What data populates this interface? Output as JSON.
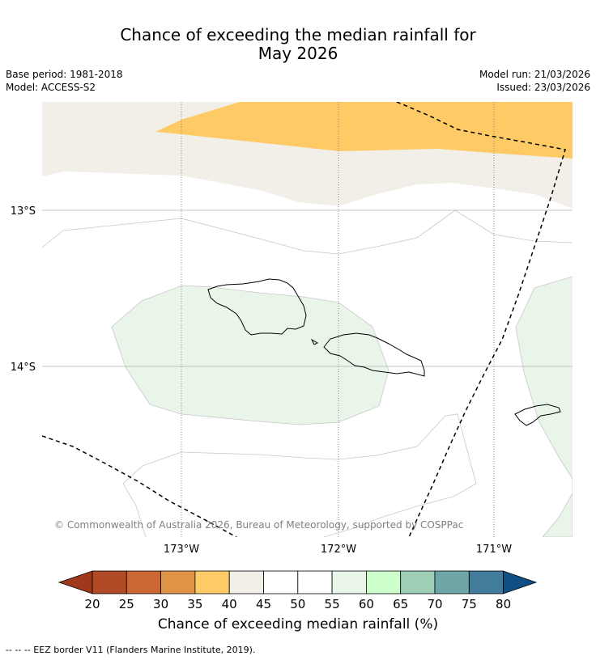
{
  "header": {
    "title_line1": "Chance of exceeding the median rainfall for",
    "title_line2": "May 2026",
    "base_period": "Base period: 1981-2018",
    "model": "Model: ACCESS-S2",
    "model_run": "Model run: 21/03/2026",
    "issued": "Issued: 23/03/2026"
  },
  "map": {
    "lat_labels": [
      "13°S",
      "14°S"
    ],
    "lon_labels": [
      "173°W",
      "172°W",
      "171°W"
    ],
    "copyright": "© Commonwealth of Australia 2026, Bureau of Meteorology, supported by COSPPac",
    "colors": {
      "band_40_45": "#f2eee8",
      "band_35_40": "#fdca66",
      "band_55_60": "#eaf5ea",
      "eez": "#000000"
    }
  },
  "colorbar": {
    "title": "Chance of exceeding median rainfall (%)",
    "tick_labels": [
      "20",
      "25",
      "30",
      "35",
      "40",
      "45",
      "50",
      "55",
      "60",
      "65",
      "70",
      "75",
      "80"
    ],
    "colors": [
      "#a0391b",
      "#b04a25",
      "#cc6633",
      "#e09447",
      "#fdca66",
      "#f2eee8",
      "#ffffff",
      "#ffffff",
      "#eaf5ea",
      "#ccffcc",
      "#9ccfb6",
      "#6fa6a8",
      "#427c9b",
      "#0f4f85"
    ]
  },
  "footnote": "-- -- -- EEZ border V11 (Flanders Marine Institute, 2019)."
}
